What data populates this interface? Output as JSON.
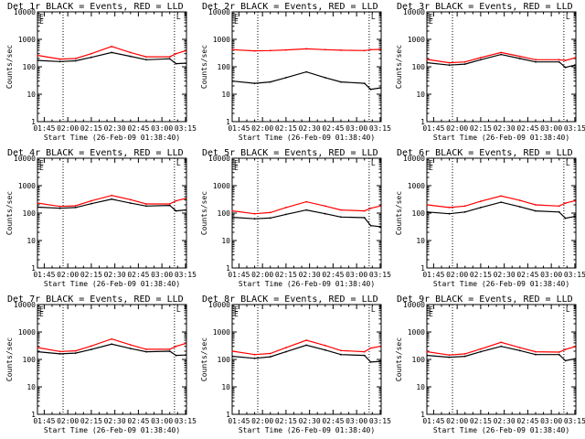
{
  "chart_data": [
    {
      "type": "line",
      "title": "Det 1r BLACK = Events, RED = LLD",
      "xlabel": "Start Time (26-Feb-09 01:38:40)",
      "ylabel": "Counts/sec",
      "yscale": "log",
      "ylim": [
        1,
        10000
      ],
      "x_ticks": [
        "01:45",
        "02:00",
        "02:15",
        "02:30",
        "02:45",
        "03:00",
        "03:15"
      ],
      "y_ticks": [
        "1",
        "10",
        "100",
        "1000",
        "10000"
      ],
      "vlines_time": [
        "01:57",
        "03:08"
      ],
      "markers": [
        "E",
        "E",
        "L"
      ],
      "series": [
        {
          "color": "#000000",
          "x": [
            "01:41",
            "01:55",
            "02:05",
            "02:15",
            "02:28",
            "02:40",
            "02:50",
            "03:05",
            "03:09",
            "03:15"
          ],
          "y": [
            170,
            155,
            165,
            220,
            330,
            240,
            180,
            195,
            130,
            135
          ]
        },
        {
          "color": "#ff0000",
          "x": [
            "01:41",
            "01:55",
            "02:05",
            "02:15",
            "02:28",
            "02:40",
            "02:50",
            "03:05",
            "03:09",
            "03:15"
          ],
          "y": [
            260,
            190,
            200,
            300,
            550,
            330,
            230,
            230,
            300,
            380
          ]
        }
      ]
    },
    {
      "type": "line",
      "title": "Det 2r BLACK = Events, RED = LLD",
      "xlabel": "Start Time (26-Feb-09 01:38:40)",
      "ylabel": "Counts/sec",
      "yscale": "log",
      "ylim": [
        1,
        10000
      ],
      "x_ticks": [
        "01:45",
        "02:00",
        "02:15",
        "02:30",
        "02:45",
        "03:00",
        "03:15"
      ],
      "y_ticks": [
        "1",
        "10",
        "100",
        "1000",
        "10000"
      ],
      "vlines_time": [
        "01:57",
        "03:08"
      ],
      "markers": [
        "E",
        "E",
        "L"
      ],
      "series": [
        {
          "color": "#000000",
          "x": [
            "01:41",
            "01:55",
            "02:05",
            "02:15",
            "02:28",
            "02:40",
            "02:50",
            "03:05",
            "03:09",
            "03:15"
          ],
          "y": [
            30,
            25,
            28,
            40,
            65,
            40,
            28,
            25,
            15,
            17
          ]
        },
        {
          "color": "#ff0000",
          "x": [
            "01:41",
            "01:55",
            "02:05",
            "02:15",
            "02:28",
            "02:40",
            "02:50",
            "03:05",
            "03:09",
            "03:15"
          ],
          "y": [
            420,
            380,
            390,
            410,
            450,
            420,
            400,
            390,
            420,
            430
          ]
        }
      ]
    },
    {
      "type": "line",
      "title": "Det 3r BLACK = Events, RED = LLD",
      "xlabel": "Start Time (26-Feb-09 01:38:40)",
      "ylabel": "Counts/sec",
      "yscale": "log",
      "ylim": [
        1,
        10000
      ],
      "x_ticks": [
        "01:45",
        "02:00",
        "02:15",
        "02:30",
        "02:45",
        "03:00",
        "03:15"
      ],
      "y_ticks": [
        "1",
        "10",
        "100",
        "1000",
        "10000"
      ],
      "vlines_time": [
        "01:57",
        "03:08"
      ],
      "markers": [
        "E",
        "E",
        "L"
      ],
      "series": [
        {
          "color": "#000000",
          "x": [
            "01:41",
            "01:55",
            "02:05",
            "02:15",
            "02:28",
            "02:40",
            "02:50",
            "03:05",
            "03:09",
            "03:15"
          ],
          "y": [
            140,
            115,
            125,
            180,
            280,
            200,
            150,
            150,
            95,
            115
          ]
        },
        {
          "color": "#ff0000",
          "x": [
            "01:41",
            "01:55",
            "02:05",
            "02:15",
            "02:28",
            "02:40",
            "02:50",
            "03:05",
            "03:09",
            "03:15"
          ],
          "y": [
            185,
            140,
            150,
            215,
            330,
            240,
            180,
            180,
            170,
            210
          ]
        }
      ]
    },
    {
      "type": "line",
      "title": "Det 4r BLACK = Events, RED = LLD",
      "xlabel": "Start Time (26-Feb-09 01:38:40)",
      "ylabel": "Counts/sec",
      "yscale": "log",
      "ylim": [
        1,
        10000
      ],
      "x_ticks": [
        "01:45",
        "02:00",
        "02:15",
        "02:30",
        "02:45",
        "03:00",
        "03:15"
      ],
      "y_ticks": [
        "1",
        "10",
        "100",
        "1000",
        "10000"
      ],
      "vlines_time": [
        "01:57",
        "03:08"
      ],
      "markers": [
        "E",
        "E",
        "L"
      ],
      "series": [
        {
          "color": "#000000",
          "x": [
            "01:41",
            "01:55",
            "02:05",
            "02:15",
            "02:28",
            "02:40",
            "02:50",
            "03:05",
            "03:09",
            "03:15"
          ],
          "y": [
            165,
            150,
            160,
            220,
            320,
            230,
            180,
            190,
            120,
            130
          ]
        },
        {
          "color": "#ff0000",
          "x": [
            "01:41",
            "01:55",
            "02:05",
            "02:15",
            "02:28",
            "02:40",
            "02:50",
            "03:05",
            "03:09",
            "03:15"
          ],
          "y": [
            230,
            175,
            185,
            280,
            440,
            310,
            215,
            215,
            280,
            340
          ]
        }
      ]
    },
    {
      "type": "line",
      "title": "Det 5r BLACK = Events, RED = LLD",
      "xlabel": "Start Time (26-Feb-09 01:38:40)",
      "ylabel": "Counts/sec",
      "yscale": "log",
      "ylim": [
        1,
        10000
      ],
      "x_ticks": [
        "01:45",
        "02:00",
        "02:15",
        "02:30",
        "02:45",
        "03:00",
        "03:15"
      ],
      "y_ticks": [
        "1",
        "10",
        "100",
        "1000",
        "10000"
      ],
      "vlines_time": [
        "01:57",
        "03:08"
      ],
      "markers": [
        "E",
        "E",
        "L"
      ],
      "series": [
        {
          "color": "#000000",
          "x": [
            "01:41",
            "01:55",
            "02:05",
            "02:15",
            "02:28",
            "02:40",
            "02:50",
            "03:05",
            "03:09",
            "03:15"
          ],
          "y": [
            70,
            62,
            66,
            90,
            130,
            95,
            72,
            68,
            35,
            32
          ]
        },
        {
          "color": "#ff0000",
          "x": [
            "01:41",
            "01:55",
            "02:05",
            "02:15",
            "02:28",
            "02:40",
            "02:50",
            "03:05",
            "03:09",
            "03:15"
          ],
          "y": [
            120,
            95,
            105,
            160,
            260,
            180,
            130,
            120,
            150,
            180
          ]
        }
      ]
    },
    {
      "type": "line",
      "title": "Det 6r BLACK = Events, RED = LLD",
      "xlabel": "Start Time (26-Feb-09 01:38:40)",
      "ylabel": "Counts/sec",
      "yscale": "log",
      "ylim": [
        1,
        10000
      ],
      "x_ticks": [
        "01:45",
        "02:00",
        "02:15",
        "02:30",
        "02:45",
        "03:00",
        "03:15"
      ],
      "y_ticks": [
        "1",
        "10",
        "100",
        "1000",
        "10000"
      ],
      "vlines_time": [
        "01:57",
        "03:08"
      ],
      "markers": [
        "E",
        "E",
        "L"
      ],
      "series": [
        {
          "color": "#000000",
          "x": [
            "01:41",
            "01:55",
            "02:05",
            "02:15",
            "02:28",
            "02:40",
            "02:50",
            "03:05",
            "03:09",
            "03:15"
          ],
          "y": [
            110,
            95,
            110,
            160,
            250,
            170,
            120,
            110,
            65,
            75
          ]
        },
        {
          "color": "#ff0000",
          "x": [
            "01:41",
            "01:55",
            "02:05",
            "02:15",
            "02:28",
            "02:40",
            "02:50",
            "03:05",
            "03:09",
            "03:15"
          ],
          "y": [
            200,
            160,
            180,
            270,
            420,
            290,
            200,
            180,
            230,
            280
          ]
        }
      ]
    },
    {
      "type": "line",
      "title": "Det 7r BLACK = Events, RED = LLD",
      "xlabel": "Start Time (26-Feb-09 01:38:40)",
      "ylabel": "Counts/sec",
      "yscale": "log",
      "ylim": [
        1,
        10000
      ],
      "x_ticks": [
        "01:45",
        "02:00",
        "02:15",
        "02:30",
        "02:45",
        "03:00",
        "03:15"
      ],
      "y_ticks": [
        "1",
        "10",
        "100",
        "1000",
        "10000"
      ],
      "vlines_time": [
        "01:57",
        "03:08"
      ],
      "markers": [
        "E",
        "E",
        "L"
      ],
      "series": [
        {
          "color": "#000000",
          "x": [
            "01:41",
            "01:55",
            "02:05",
            "02:15",
            "02:28",
            "02:40",
            "02:50",
            "03:05",
            "03:09",
            "03:15"
          ],
          "y": [
            190,
            160,
            170,
            230,
            360,
            250,
            190,
            200,
            140,
            145
          ]
        },
        {
          "color": "#ff0000",
          "x": [
            "01:41",
            "01:55",
            "02:05",
            "02:15",
            "02:28",
            "02:40",
            "02:50",
            "03:05",
            "03:09",
            "03:15"
          ],
          "y": [
            270,
            195,
            205,
            310,
            560,
            340,
            235,
            235,
            300,
            380
          ]
        }
      ]
    },
    {
      "type": "line",
      "title": "Det 8r BLACK = Events, RED = LLD",
      "xlabel": "Start Time (26-Feb-09 01:38:40)",
      "ylabel": "Counts/sec",
      "yscale": "log",
      "ylim": [
        1,
        10000
      ],
      "x_ticks": [
        "01:45",
        "02:00",
        "02:15",
        "02:30",
        "02:45",
        "03:00",
        "03:15"
      ],
      "y_ticks": [
        "1",
        "10",
        "100",
        "1000",
        "10000"
      ],
      "vlines_time": [
        "01:57",
        "03:08"
      ],
      "markers": [
        "E",
        "E",
        "L"
      ],
      "series": [
        {
          "color": "#000000",
          "x": [
            "01:41",
            "01:55",
            "02:05",
            "02:15",
            "02:28",
            "02:40",
            "02:50",
            "03:05",
            "03:09",
            "03:15"
          ],
          "y": [
            130,
            110,
            125,
            190,
            330,
            220,
            150,
            140,
            80,
            85
          ]
        },
        {
          "color": "#ff0000",
          "x": [
            "01:41",
            "01:55",
            "02:05",
            "02:15",
            "02:28",
            "02:40",
            "02:50",
            "03:05",
            "03:09",
            "03:15"
          ],
          "y": [
            200,
            150,
            165,
            270,
            500,
            320,
            210,
            190,
            260,
            300
          ]
        }
      ]
    },
    {
      "type": "line",
      "title": "Det 9r BLACK = Events, RED = LLD",
      "xlabel": "Start Time (26-Feb-09 01:38:40)",
      "ylabel": "Counts/sec",
      "yscale": "log",
      "ylim": [
        1,
        10000
      ],
      "x_ticks": [
        "01:45",
        "02:00",
        "02:15",
        "02:30",
        "02:45",
        "03:00",
        "03:15"
      ],
      "y_ticks": [
        "1",
        "10",
        "100",
        "1000",
        "10000"
      ],
      "vlines_time": [
        "01:57",
        "03:08"
      ],
      "markers": [
        "E",
        "E",
        "L"
      ],
      "series": [
        {
          "color": "#000000",
          "x": [
            "01:41",
            "01:55",
            "02:05",
            "02:15",
            "02:28",
            "02:40",
            "02:50",
            "03:05",
            "03:09",
            "03:15"
          ],
          "y": [
            140,
            120,
            130,
            190,
            300,
            210,
            150,
            150,
            90,
            105
          ]
        },
        {
          "color": "#ff0000",
          "x": [
            "01:41",
            "01:55",
            "02:05",
            "02:15",
            "02:28",
            "02:40",
            "02:50",
            "03:05",
            "03:09",
            "03:15"
          ],
          "y": [
            190,
            145,
            160,
            240,
            420,
            270,
            190,
            185,
            230,
            290
          ]
        }
      ]
    }
  ]
}
